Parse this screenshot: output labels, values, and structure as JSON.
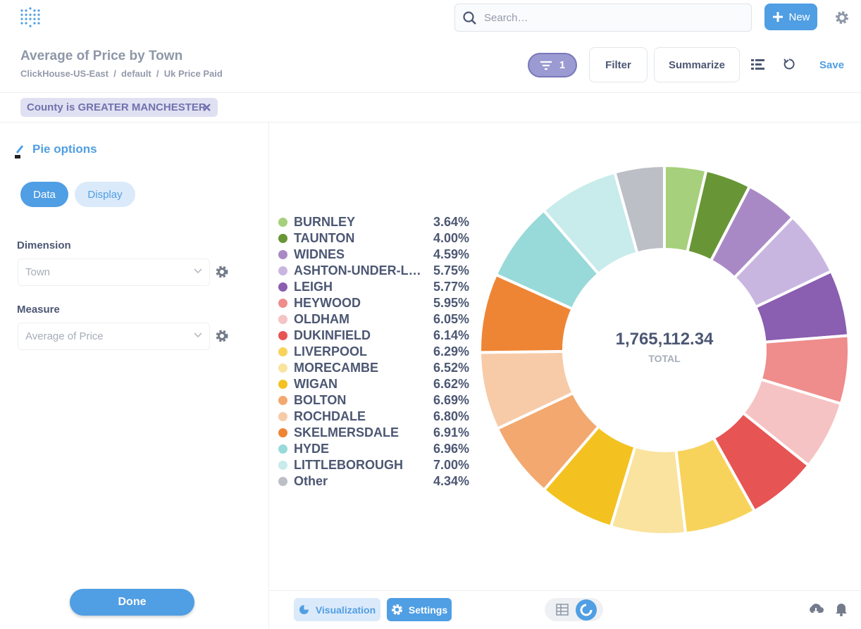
{
  "header": {
    "search_placeholder": "Search…",
    "new_button": "New",
    "title": "Average of Price by Town",
    "breadcrumbs": [
      "ClickHouse-US-East",
      "default",
      "Uk Price Paid"
    ],
    "filter_count": 1,
    "filter_button": "Filter",
    "summarize_button": "Summarize",
    "save_button": "Save"
  },
  "filter_pill": "County is GREATER MANCHESTER",
  "sidebar": {
    "title": "Pie options",
    "tabs": [
      "Data",
      "Display"
    ],
    "dimension_label": "Dimension",
    "dimension_value": "Town",
    "measure_label": "Measure",
    "measure_value": "Average of Price",
    "done_button": "Done"
  },
  "footer": {
    "visualization_button": "Visualization",
    "settings_button": "Settings"
  },
  "chart_data": {
    "type": "pie",
    "total": {
      "value": 1765112.34,
      "label": "1,765,112.34"
    },
    "total_caption": "TOTAL",
    "categories": [
      "BURNLEY",
      "TAUNTON",
      "WIDNES",
      "ASHTON-UNDER-L…",
      "LEIGH",
      "HEYWOOD",
      "OLDHAM",
      "DUKINFIELD",
      "LIVERPOOL",
      "MORECAMBE",
      "WIGAN",
      "BOLTON",
      "ROCHDALE",
      "SKELMERSDALE",
      "HYDE",
      "LITTLEBOROUGH",
      "Other"
    ],
    "values": [
      3.64,
      4.0,
      4.59,
      5.75,
      5.77,
      5.95,
      6.05,
      6.14,
      6.29,
      6.52,
      6.62,
      6.69,
      6.8,
      6.91,
      6.96,
      7.0,
      4.34
    ],
    "value_labels": [
      "3.64%",
      "4.00%",
      "4.59%",
      "5.75%",
      "5.77%",
      "5.95%",
      "6.05%",
      "6.14%",
      "6.29%",
      "6.52%",
      "6.62%",
      "6.69%",
      "6.80%",
      "6.91%",
      "6.96%",
      "7.00%",
      "4.34%"
    ],
    "colors": [
      "#a6d07b",
      "#689636",
      "#a989c5",
      "#c9b6e0",
      "#8a5eb0",
      "#ef8c8c",
      "#f5c3c3",
      "#e75454",
      "#f7d35c",
      "#fae39e",
      "#f3c220",
      "#f2a86f",
      "#f7cba8",
      "#ee8535",
      "#98d9d9",
      "#c8ebeb",
      "#bcbfc6"
    ]
  }
}
